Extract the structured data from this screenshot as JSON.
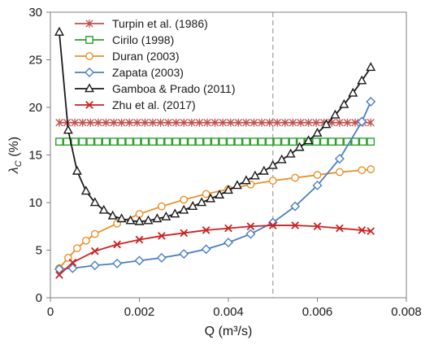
{
  "chart_data": {
    "type": "line",
    "xlabel": "Q (m³/s)",
    "ylabel": "λC (%)",
    "xlim": [
      0,
      0.008
    ],
    "ylim": [
      0,
      30
    ],
    "xticks": [
      "0",
      "0.002",
      "0.004",
      "0.006",
      "0.008"
    ],
    "yticks": [
      "0",
      "5",
      "10",
      "15",
      "20",
      "25",
      "30"
    ],
    "legend_position": "top-left",
    "reference_line": {
      "x": 0.005,
      "style": "dashed",
      "color": "#a6a6a6"
    },
    "series": [
      {
        "name": "Turpin et al. (1986)",
        "color": "#c0504d",
        "marker": "asterisk",
        "x": [
          0.0002,
          0.0072
        ],
        "y": [
          18.4,
          18.4
        ]
      },
      {
        "name": "Cirilo (1998)",
        "color": "#2ca02c",
        "marker": "square",
        "x": [
          0.0002,
          0.0072
        ],
        "y": [
          16.4,
          16.4
        ]
      },
      {
        "name": "Duran (2003)",
        "color": "#e8912a",
        "marker": "circle",
        "x": [
          0.0002,
          0.0004,
          0.0006,
          0.0008,
          0.001,
          0.0015,
          0.002,
          0.0025,
          0.003,
          0.0035,
          0.004,
          0.0045,
          0.005,
          0.0055,
          0.006,
          0.0065,
          0.007,
          0.0072
        ],
        "y": [
          3.1,
          4.2,
          5.2,
          6.0,
          6.7,
          7.8,
          8.8,
          9.6,
          10.3,
          10.9,
          11.4,
          11.9,
          12.3,
          12.6,
          12.9,
          13.2,
          13.4,
          13.5
        ]
      },
      {
        "name": "Zapata (2003)",
        "color": "#4a7fc1",
        "marker": "diamond",
        "x": [
          0.0002,
          0.0005,
          0.001,
          0.0015,
          0.002,
          0.0025,
          0.003,
          0.0035,
          0.004,
          0.0045,
          0.005,
          0.0055,
          0.006,
          0.0065,
          0.007,
          0.0072
        ],
        "y": [
          3.0,
          3.1,
          3.4,
          3.6,
          3.9,
          4.2,
          4.6,
          5.1,
          5.8,
          6.7,
          7.9,
          9.6,
          11.8,
          14.6,
          18.5,
          20.6
        ]
      },
      {
        "name": "Gamboa & Prado (2011)",
        "color": "#1a1a1a",
        "marker": "triangle",
        "x": [
          0.0002,
          0.0004,
          0.0006,
          0.0008,
          0.001,
          0.0012,
          0.0014,
          0.0016,
          0.0018,
          0.002,
          0.0022,
          0.0024,
          0.0026,
          0.0028,
          0.003,
          0.0032,
          0.0034,
          0.0036,
          0.0038,
          0.004,
          0.0042,
          0.0044,
          0.0046,
          0.0048,
          0.005,
          0.0052,
          0.0054,
          0.0056,
          0.0058,
          0.006,
          0.0062,
          0.0064,
          0.0066,
          0.0068,
          0.007,
          0.0072
        ],
        "y": [
          27.9,
          17.6,
          13.3,
          11.2,
          10.0,
          9.2,
          8.6,
          8.3,
          8.1,
          8.0,
          8.1,
          8.3,
          8.5,
          8.8,
          9.2,
          9.6,
          10.0,
          10.4,
          10.8,
          11.3,
          11.8,
          12.3,
          12.8,
          13.3,
          13.9,
          14.5,
          15.1,
          15.8,
          16.5,
          17.3,
          18.2,
          19.2,
          20.3,
          21.5,
          22.8,
          24.2
        ]
      },
      {
        "name": "Zhu et al. (2017)",
        "color": "#cc2222",
        "marker": "x",
        "x": [
          0.0002,
          0.0005,
          0.001,
          0.0015,
          0.002,
          0.0025,
          0.003,
          0.0035,
          0.004,
          0.0045,
          0.005,
          0.0055,
          0.006,
          0.0065,
          0.007,
          0.0072
        ],
        "y": [
          2.4,
          3.7,
          4.9,
          5.6,
          6.1,
          6.5,
          6.8,
          7.1,
          7.3,
          7.5,
          7.6,
          7.6,
          7.5,
          7.3,
          7.1,
          7.0
        ]
      }
    ]
  }
}
